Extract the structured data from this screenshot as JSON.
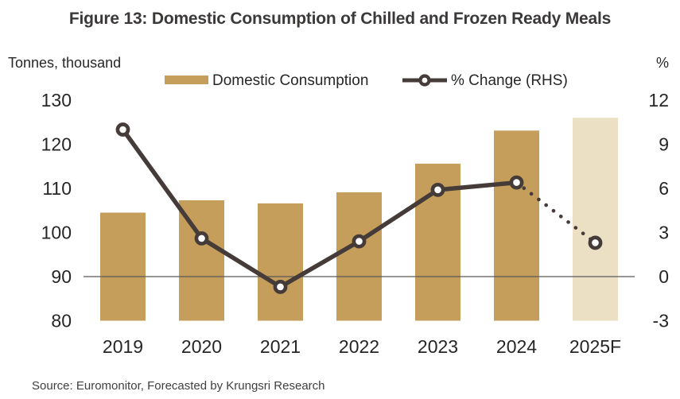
{
  "title": "Figure 13: Domestic Consumption of Chilled and Frozen Ready Meals",
  "left_axis_unit": "Tonnes, thousand",
  "right_axis_unit": "%",
  "legend": [
    {
      "label": "Domestic Consumption",
      "type": "bar-swatch"
    },
    {
      "label": "% Change (RHS)",
      "type": "line-marker"
    }
  ],
  "source": "Source: Euromonitor, Forecasted by Krungsri Research",
  "colors": {
    "bar": "#C69E5B",
    "bar_forecast": "#EBDFC4",
    "line": "#453C39",
    "baseline": "#595959",
    "tick_text": "#262626",
    "title_text": "#3B3838"
  },
  "chart_data": {
    "type": "bar",
    "categories": [
      "2019",
      "2020",
      "2021",
      "2022",
      "2023",
      "2024",
      "2025F"
    ],
    "series": [
      {
        "name": "Domestic Consumption",
        "type": "bar",
        "axis": "left",
        "values": [
          104.5,
          107.3,
          106.6,
          109.1,
          115.6,
          123.1,
          126.0
        ],
        "forecast_index": 6
      },
      {
        "name": "% Change (RHS)",
        "type": "line",
        "axis": "right",
        "values": [
          10.0,
          2.6,
          -0.7,
          2.4,
          5.9,
          6.4,
          2.3
        ],
        "dotted_from_index": 5
      }
    ],
    "left_axis": {
      "label": "Tonnes, thousand",
      "ticks": [
        130,
        120,
        110,
        100,
        90,
        80
      ],
      "range": [
        80,
        130
      ]
    },
    "right_axis": {
      "label": "%",
      "ticks": [
        12,
        9,
        6,
        3,
        0,
        -3
      ],
      "range": [
        -3,
        12
      ]
    },
    "baseline_right_value": 0,
    "grid": false,
    "legend_position": "top"
  }
}
